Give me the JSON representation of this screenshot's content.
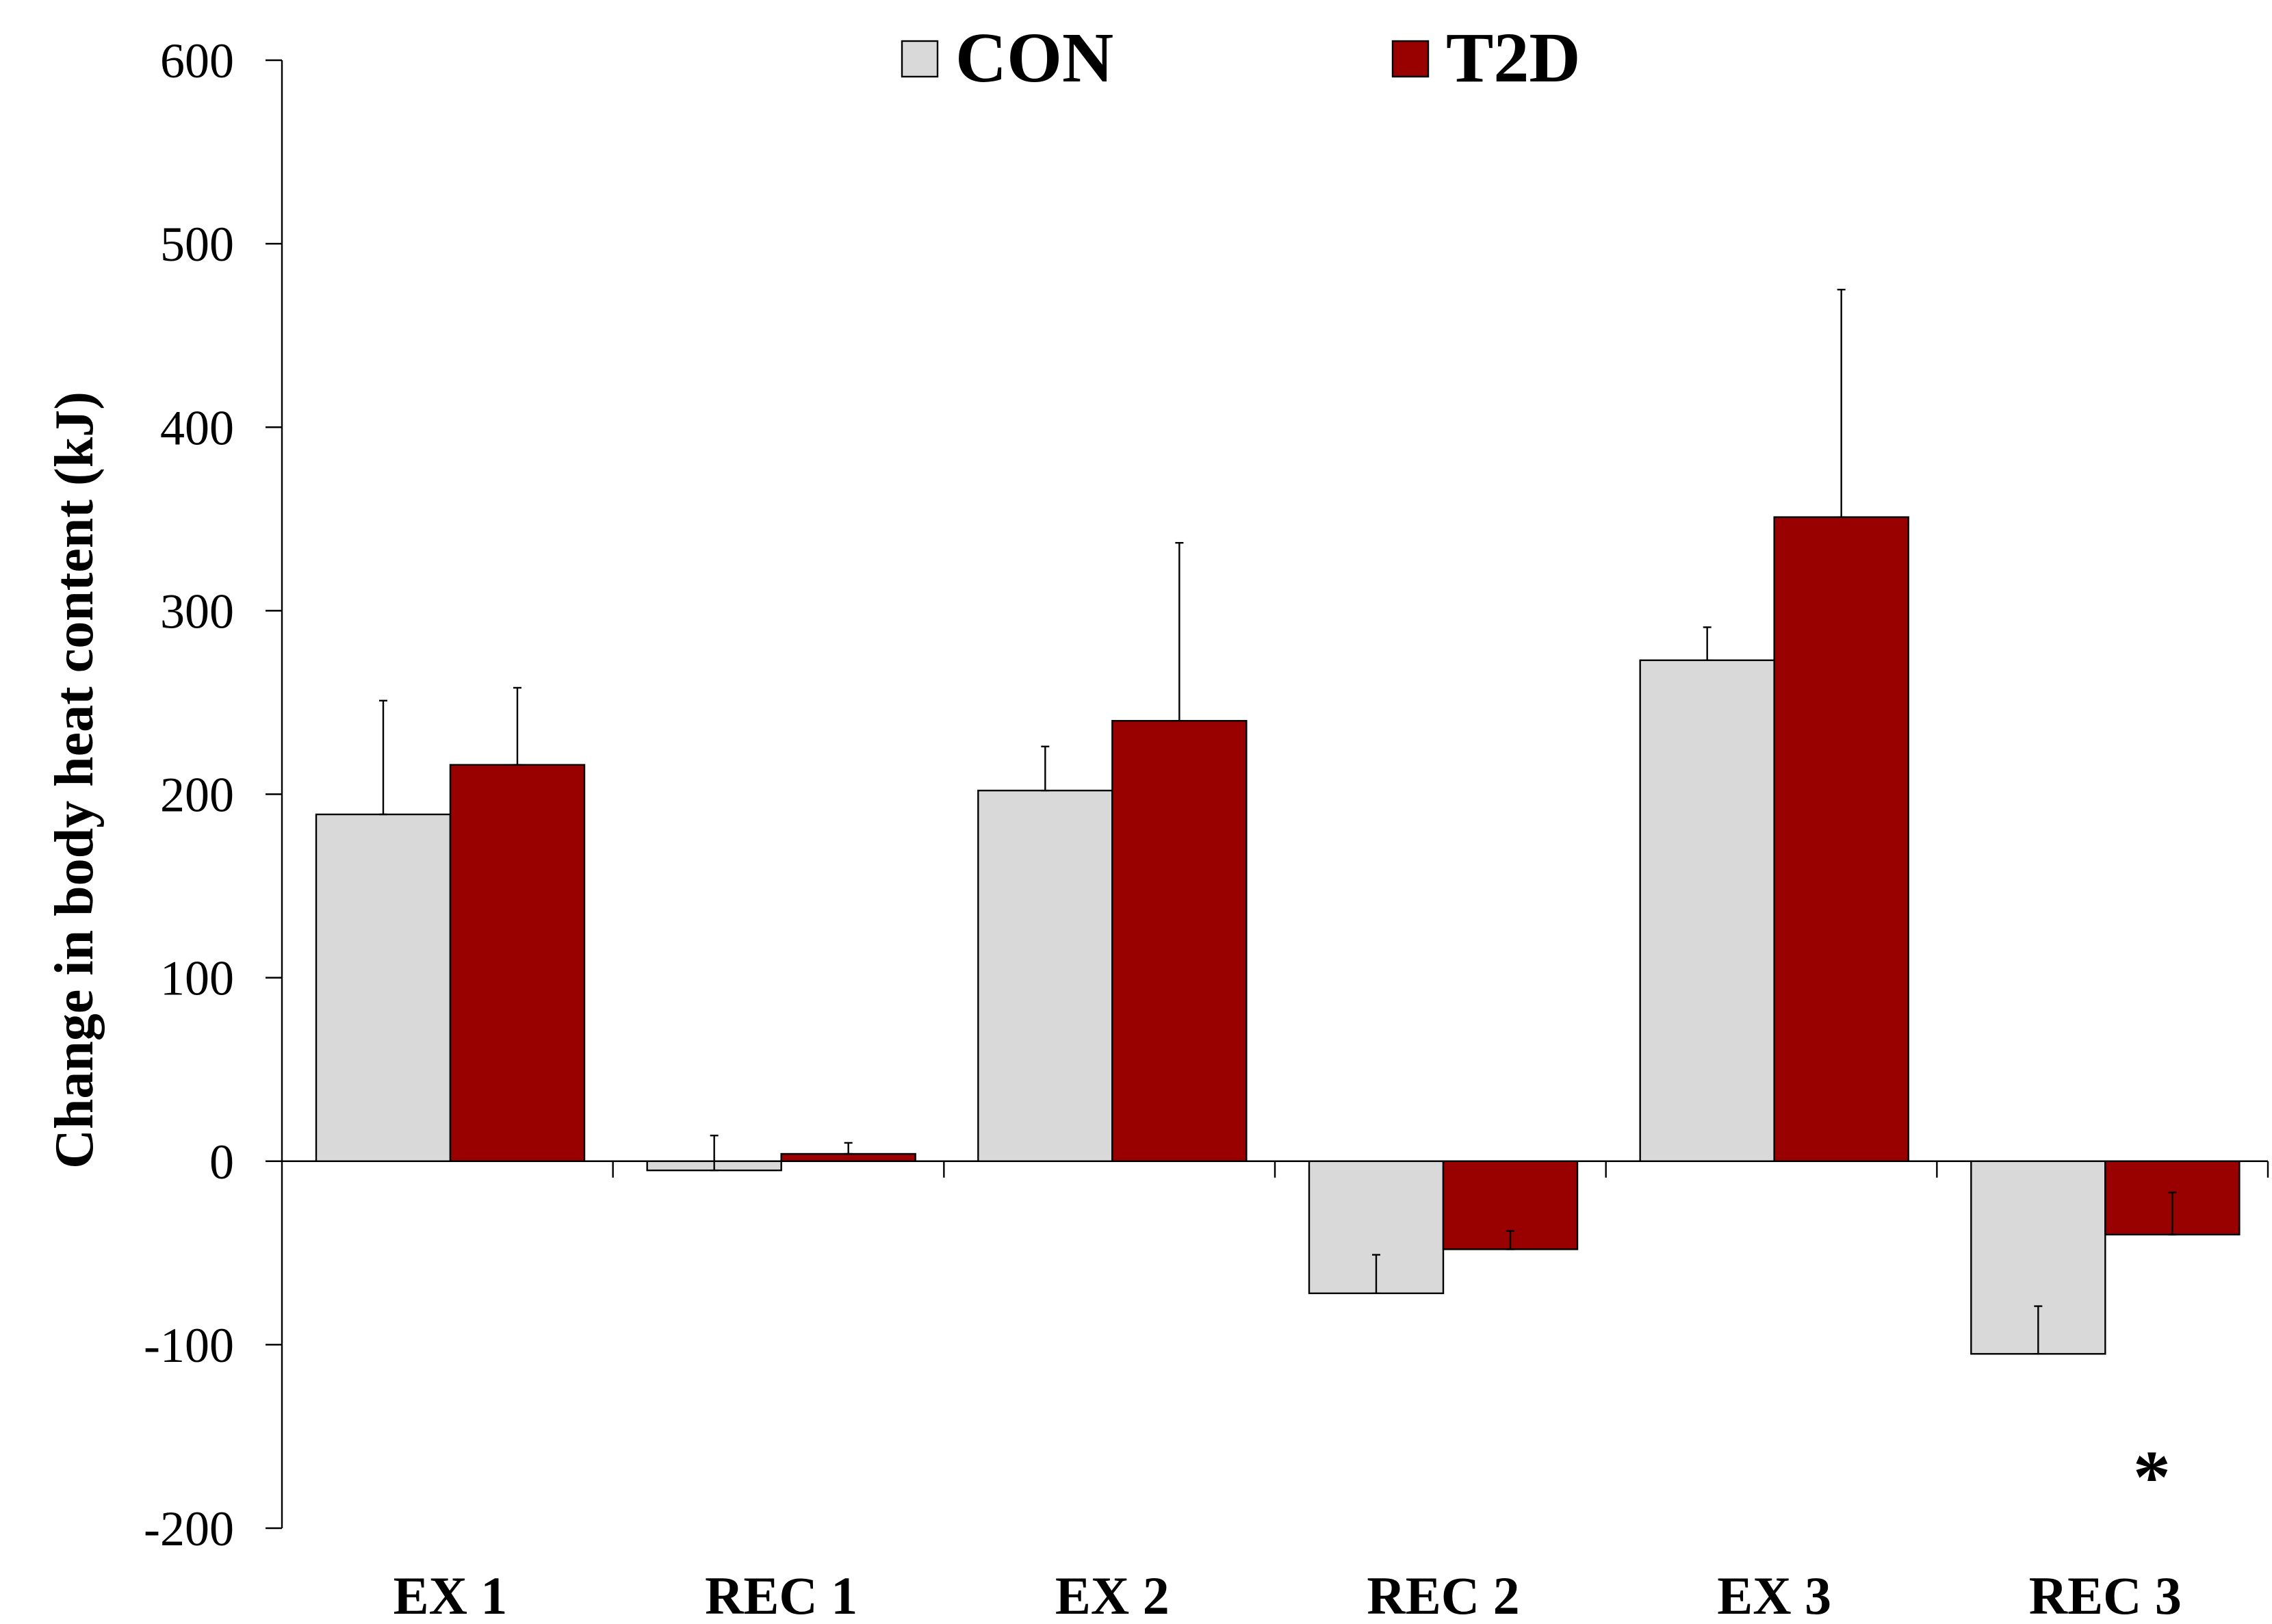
{
  "chart_data": {
    "type": "bar",
    "ylabel": "Change in body heat content (kJ)",
    "xlabel": "",
    "ylim": [
      -200,
      600
    ],
    "yticks": [
      600,
      500,
      400,
      300,
      200,
      100,
      0,
      -100,
      -200
    ],
    "categories": [
      "EX 1",
      "REC 1",
      "EX 2",
      "REC 2",
      "EX 3",
      "REC 3"
    ],
    "series": [
      {
        "name": "CON",
        "color": "#d9d9d9",
        "values": [
          189,
          -5,
          202,
          -72,
          273,
          -105
        ],
        "error_plus": [
          62,
          19,
          24,
          21,
          18,
          26
        ]
      },
      {
        "name": "T2D",
        "color": "#990000",
        "values": [
          216,
          4,
          240,
          -48,
          351,
          -40
        ],
        "error_plus": [
          42,
          6,
          97,
          10,
          124,
          23
        ]
      }
    ],
    "legend": {
      "placement": "top-center"
    },
    "grid": false,
    "annotations": [
      {
        "text": "*",
        "category": "REC 3"
      }
    ]
  }
}
